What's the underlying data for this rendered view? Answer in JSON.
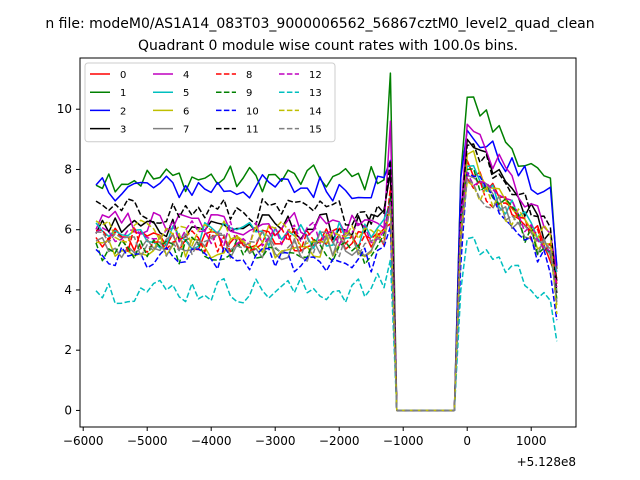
{
  "suptitle": "n file: modeM0/AS1A14_083T03_9000006562_56867cztM0_level2_quad_clean",
  "chart_data": {
    "type": "line",
    "title": "Quadrant 0 module wise count rates with 100.0s bins.",
    "xlabel": "",
    "ylabel": "",
    "x_offset_label": "+5.128e8",
    "xlim": [
      -6050,
      1700
    ],
    "ylim": [
      -0.55,
      11.7
    ],
    "x_ticks": [
      -6000,
      -5000,
      -4000,
      -3000,
      -2000,
      -1000,
      0,
      1000
    ],
    "x_tick_labels": [
      "−6000",
      "−5000",
      "−4000",
      "−3000",
      "−2000",
      "−1000",
      "0",
      "1000"
    ],
    "y_ticks": [
      0,
      2,
      4,
      6,
      8,
      10
    ],
    "y_tick_labels": [
      "0",
      "2",
      "4",
      "6",
      "8",
      "10"
    ],
    "grid": false,
    "legend": {
      "placement": "top-left",
      "columns": 4
    },
    "x_start": -5800,
    "x_step": 100,
    "n_points": 73,
    "gap": {
      "start": -1100,
      "end": -200,
      "value": 0
    },
    "series": [
      {
        "name": "0",
        "color": "#ff0000",
        "dash": "solid",
        "base": 5.6,
        "peak1": 6.2,
        "peak2": 8.3,
        "end": 4.4
      },
      {
        "name": "1",
        "color": "#008000",
        "dash": "solid",
        "base": 7.7,
        "peak1": 11.2,
        "peak2": 10.4,
        "end": 4.7
      },
      {
        "name": "2",
        "color": "#0000ff",
        "dash": "solid",
        "base": 7.4,
        "peak1": 8.3,
        "peak2": 9.3,
        "end": 4.8
      },
      {
        "name": "3",
        "color": "#000000",
        "dash": "solid",
        "base": 6.1,
        "peak1": 7.9,
        "peak2": 9.0,
        "end": 4.3
      },
      {
        "name": "4",
        "color": "#bf00bf",
        "dash": "solid",
        "base": 6.2,
        "peak1": 9.6,
        "peak2": 9.5,
        "end": 4.6
      },
      {
        "name": "5",
        "color": "#00bfbf",
        "dash": "solid",
        "base": 5.8,
        "peak1": 6.9,
        "peak2": 8.1,
        "end": 4.6
      },
      {
        "name": "6",
        "color": "#bfbf00",
        "dash": "solid",
        "base": 5.5,
        "peak1": 6.9,
        "peak2": 8.5,
        "end": 3.5
      },
      {
        "name": "7",
        "color": "#808080",
        "dash": "solid",
        "base": 5.4,
        "peak1": 7.0,
        "peak2": 7.8,
        "end": 4.0
      },
      {
        "name": "8",
        "color": "#ff0000",
        "dash": "dashed",
        "base": 5.7,
        "peak1": 7.4,
        "peak2": 7.7,
        "end": 4.2
      },
      {
        "name": "9",
        "color": "#008000",
        "dash": "dashed",
        "base": 5.3,
        "peak1": 7.1,
        "peak2": 8.0,
        "end": 3.7
      },
      {
        "name": "10",
        "color": "#0000ff",
        "dash": "dashed",
        "base": 5.0,
        "peak1": 6.1,
        "peak2": 7.9,
        "end": 3.0
      },
      {
        "name": "11",
        "color": "#000000",
        "dash": "dashed",
        "base": 6.6,
        "peak1": 8.3,
        "peak2": 8.8,
        "end": 3.9
      },
      {
        "name": "12",
        "color": "#bf00bf",
        "dash": "dashed",
        "base": 5.9,
        "peak1": 6.9,
        "peak2": 7.9,
        "end": 4.1
      },
      {
        "name": "13",
        "color": "#00bfbf",
        "dash": "dashed",
        "base": 4.0,
        "peak1": 5.0,
        "peak2": 5.7,
        "end": 2.3
      },
      {
        "name": "14",
        "color": "#bfbf00",
        "dash": "dashed",
        "base": 5.9,
        "peak1": 6.7,
        "peak2": 7.6,
        "end": 3.2
      },
      {
        "name": "15",
        "color": "#808080",
        "dash": "dashed",
        "base": 5.5,
        "peak1": 6.8,
        "peak2": 7.7,
        "end": 3.6
      }
    ]
  }
}
